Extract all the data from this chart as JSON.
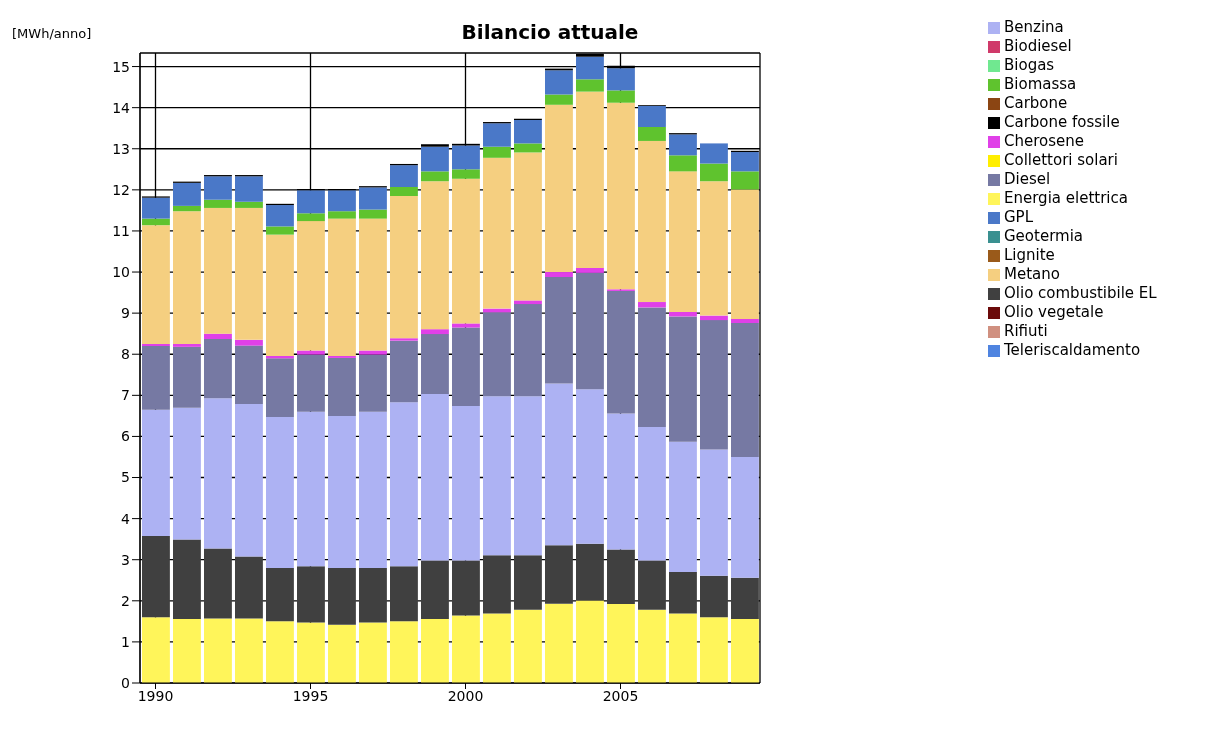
{
  "chart_data": {
    "type": "bar",
    "title": "Bilancio attuale",
    "ylabel": "[MWh/anno]",
    "stacked": true,
    "grid": true,
    "legend": "top right",
    "x": [
      1990,
      1991,
      1992,
      1993,
      1994,
      1995,
      1996,
      1997,
      1998,
      1999,
      2000,
      2001,
      2002,
      2003,
      2004,
      2005,
      2006,
      2007,
      2008,
      2009
    ],
    "xlim": [
      1989.5,
      2009.5
    ],
    "xticks": [
      1990,
      1995,
      2000,
      2005
    ],
    "ylim": [
      0,
      15.33
    ],
    "yticks": [
      0,
      1,
      2,
      3,
      4,
      5,
      6,
      7,
      8,
      9,
      10,
      11,
      12,
      13,
      14,
      15
    ],
    "series": [
      {
        "name": "Energia elettrica",
        "color": "#fff55a",
        "values": [
          1.6,
          1.56,
          1.57,
          1.57,
          1.5,
          1.47,
          1.42,
          1.47,
          1.5,
          1.56,
          1.64,
          1.69,
          1.78,
          1.93,
          2.01,
          1.92,
          1.78,
          1.69,
          1.6,
          1.56
        ]
      },
      {
        "name": "Olio combustibile EL",
        "color": "#404040",
        "values": [
          1.98,
          1.93,
          1.7,
          1.51,
          1.3,
          1.37,
          1.38,
          1.33,
          1.34,
          1.42,
          1.34,
          1.42,
          1.33,
          1.42,
          1.38,
          1.33,
          1.2,
          1.01,
          1.01,
          1.0
        ]
      },
      {
        "name": "Benzina",
        "color": "#adb2f3",
        "values": [
          3.07,
          3.21,
          3.66,
          3.71,
          3.67,
          3.76,
          3.7,
          3.8,
          3.99,
          4.05,
          3.76,
          3.87,
          3.87,
          3.94,
          3.76,
          3.31,
          3.25,
          3.17,
          3.07,
          2.94
        ]
      },
      {
        "name": "Diesel",
        "color": "#7679a3",
        "values": [
          1.55,
          1.48,
          1.44,
          1.42,
          1.43,
          1.39,
          1.41,
          1.39,
          1.5,
          1.46,
          1.91,
          2.04,
          2.24,
          2.59,
          2.83,
          2.98,
          2.91,
          3.05,
          3.15,
          3.26
        ]
      },
      {
        "name": "Cherosene",
        "color": "#e040e8",
        "values": [
          0.05,
          0.07,
          0.13,
          0.14,
          0.06,
          0.1,
          0.05,
          0.1,
          0.06,
          0.12,
          0.1,
          0.09,
          0.09,
          0.12,
          0.12,
          0.04,
          0.13,
          0.11,
          0.11,
          0.1
        ]
      },
      {
        "name": "Metano",
        "color": "#f5cf80",
        "values": [
          2.89,
          3.23,
          3.06,
          3.21,
          2.95,
          3.15,
          3.34,
          3.21,
          3.46,
          3.6,
          3.52,
          3.67,
          3.6,
          4.07,
          4.29,
          4.54,
          3.92,
          3.42,
          3.27,
          3.15
        ]
      },
      {
        "name": "Teleriscaldamento",
        "color": "#4f84e0",
        "values": [
          0,
          0,
          0,
          0,
          0,
          0,
          0,
          0,
          0,
          0,
          0,
          0,
          0,
          0,
          0,
          0,
          0,
          0,
          0,
          0
        ]
      },
      {
        "name": "Biomassa",
        "color": "#5fc32e",
        "values": [
          0.16,
          0.13,
          0.2,
          0.15,
          0.2,
          0.19,
          0.18,
          0.22,
          0.22,
          0.24,
          0.23,
          0.27,
          0.22,
          0.25,
          0.3,
          0.3,
          0.34,
          0.39,
          0.43,
          0.44
        ]
      },
      {
        "name": "Carbone",
        "color": "#8b4513",
        "values": [
          0,
          0,
          0,
          0,
          0,
          0,
          0,
          0,
          0,
          0,
          0,
          0,
          0,
          0,
          0,
          0,
          0,
          0,
          0,
          0
        ]
      },
      {
        "name": "Geotermia",
        "color": "#3a9090",
        "values": [
          0,
          0,
          0,
          0,
          0,
          0,
          0,
          0,
          0,
          0,
          0,
          0,
          0,
          0,
          0,
          0,
          0,
          0,
          0,
          0
        ]
      },
      {
        "name": "Collettori solari",
        "color": "#ffee00",
        "values": [
          0,
          0,
          0,
          0,
          0,
          0,
          0,
          0,
          0,
          0,
          0,
          0,
          0,
          0,
          0,
          0,
          0,
          0,
          0,
          0
        ]
      },
      {
        "name": "Biogas",
        "color": "#70e890",
        "values": [
          0,
          0,
          0,
          0,
          0,
          0,
          0,
          0,
          0,
          0,
          0,
          0,
          0,
          0,
          0,
          0,
          0,
          0,
          0,
          0
        ]
      },
      {
        "name": "Rifiuti",
        "color": "#d09080",
        "values": [
          0,
          0,
          0,
          0,
          0,
          0,
          0,
          0,
          0,
          0,
          0,
          0,
          0,
          0,
          0,
          0,
          0,
          0,
          0,
          0
        ]
      },
      {
        "name": "GPL",
        "color": "#4a78c8",
        "values": [
          0.51,
          0.56,
          0.57,
          0.62,
          0.52,
          0.56,
          0.51,
          0.54,
          0.53,
          0.6,
          0.58,
          0.57,
          0.57,
          0.59,
          0.55,
          0.54,
          0.51,
          0.51,
          0.49,
          0.47
        ]
      },
      {
        "name": "Olio vegetale",
        "color": "#6b0a0a",
        "values": [
          0,
          0,
          0,
          0,
          0,
          0,
          0,
          0,
          0,
          0,
          0,
          0,
          0,
          0,
          0,
          0,
          0,
          0,
          0,
          0
        ]
      },
      {
        "name": "Biodiesel",
        "color": "#d03a6a",
        "values": [
          0,
          0,
          0,
          0,
          0,
          0,
          0,
          0,
          0,
          0,
          0,
          0,
          0,
          0,
          0,
          0,
          0,
          0,
          0,
          0
        ]
      },
      {
        "name": "Lignite",
        "color": "#9a5a1a",
        "values": [
          0,
          0,
          0,
          0,
          0,
          0,
          0,
          0,
          0,
          0,
          0,
          0,
          0,
          0,
          0,
          0,
          0,
          0,
          0,
          0
        ]
      },
      {
        "name": "Carbone fossile",
        "color": "#000000",
        "values": [
          0.03,
          0.03,
          0.03,
          0.03,
          0.03,
          0.03,
          0.03,
          0.03,
          0.03,
          0.06,
          0.04,
          0.03,
          0.03,
          0.04,
          0.07,
          0.06,
          0.02,
          0.03,
          0,
          0.03
        ]
      }
    ]
  }
}
